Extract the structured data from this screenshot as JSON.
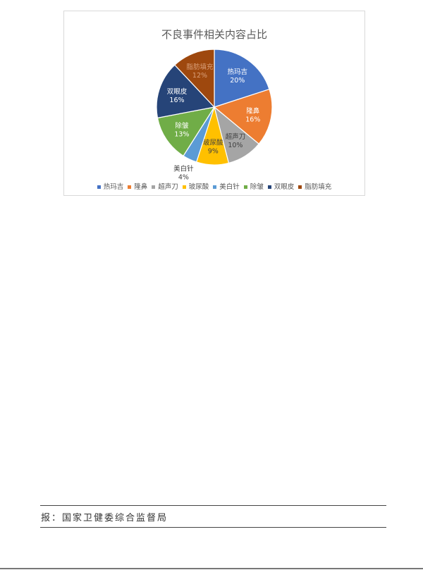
{
  "chart_data": {
    "type": "pie",
    "title": "不良事件相关内容占比",
    "categories": [
      "热玛吉",
      "隆鼻",
      "超声刀",
      "玻尿酸",
      "美白针",
      "除皱",
      "双眼皮",
      "脂肪填充"
    ],
    "values": [
      20,
      16,
      10,
      9,
      4,
      13,
      16,
      12
    ],
    "data_labels": [
      "20%",
      "16%",
      "10%",
      "9%",
      "4%",
      "13%",
      "16%",
      "12%"
    ],
    "colors": [
      "#4472C4",
      "#ED7D31",
      "#A5A5A5",
      "#FFC000",
      "#5B9BD5",
      "#70AD47",
      "#264478",
      "#9E480E"
    ],
    "legend_position": "bottom",
    "start_angle": "top, clockwise"
  },
  "footer": {
    "source": "报：国家卫健委综合监督局"
  }
}
